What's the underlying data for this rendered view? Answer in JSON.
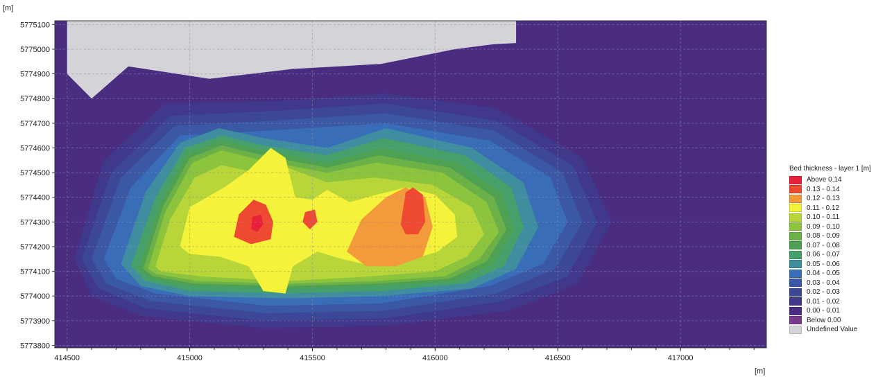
{
  "chart_data": {
    "type": "heatmap",
    "title": "",
    "x_unit_label": "[m]",
    "y_unit_label": "[m]",
    "xlim": [
      414450,
      417350
    ],
    "ylim": [
      5773790,
      5775115
    ],
    "x_ticks": [
      414500,
      415000,
      415500,
      416000,
      416500,
      417000
    ],
    "x_tick_labels": [
      "414500",
      "415000",
      "415500",
      "416000",
      "416500",
      "417000"
    ],
    "y_ticks": [
      5773800,
      5773900,
      5774000,
      5774100,
      5774200,
      5774300,
      5774400,
      5774500,
      5774600,
      5774700,
      5774800,
      5774900,
      5775000,
      5775100
    ],
    "y_tick_labels": [
      "5773800",
      "5773900",
      "5774000",
      "5774100",
      "5774200",
      "5774300",
      "5774400",
      "5774500",
      "5774600",
      "5774700",
      "5774800",
      "5774900",
      "5775000",
      "5775100"
    ],
    "grid": true,
    "legend_position": "right",
    "legend_title": "Bed thickness - layer 1 [m]",
    "legend": [
      {
        "label": "Above 0.14",
        "color": "#e8203a"
      },
      {
        "label": "0.13 - 0.14",
        "color": "#ee4a32"
      },
      {
        "label": "0.12 - 0.13",
        "color": "#f39a3a"
      },
      {
        "label": "0.11 - 0.12",
        "color": "#f4f23a"
      },
      {
        "label": "0.10 - 0.11",
        "color": "#b8d63a"
      },
      {
        "label": "0.09 - 0.10",
        "color": "#8cc43e"
      },
      {
        "label": "0.08 - 0.09",
        "color": "#6cb048"
      },
      {
        "label": "0.07 - 0.08",
        "color": "#4ea052"
      },
      {
        "label": "0.06 - 0.07",
        "color": "#46a06a"
      },
      {
        "label": "0.05 - 0.06",
        "color": "#3e8ea0"
      },
      {
        "label": "0.04 - 0.05",
        "color": "#3a6db8"
      },
      {
        "label": "0.03 - 0.04",
        "color": "#3a58a4"
      },
      {
        "label": "0.02 - 0.03",
        "color": "#3c4896"
      },
      {
        "label": "0.01 - 0.02",
        "color": "#40388a"
      },
      {
        "label": "0.00 - 0.01",
        "color": "#4a2d80"
      },
      {
        "label": "Below 0.00",
        "color": "#7a3a8a"
      },
      {
        "label": "Undefined Value",
        "color": "#d4d4d8"
      }
    ],
    "regions": [
      {
        "level": 14,
        "polygon": [
          [
            414500,
            5773800
          ],
          [
            417350,
            5773800
          ],
          [
            417350,
            5775115
          ],
          [
            414500,
            5775115
          ]
        ]
      },
      {
        "level": 13,
        "polygon": [
          [
            414530,
            5774150
          ],
          [
            414650,
            5774550
          ],
          [
            414900,
            5774780
          ],
          [
            415350,
            5774790
          ],
          [
            415800,
            5774820
          ],
          [
            416250,
            5774760
          ],
          [
            416600,
            5774560
          ],
          [
            416720,
            5774300
          ],
          [
            416580,
            5774050
          ],
          [
            416300,
            5773940
          ],
          [
            415800,
            5773880
          ],
          [
            415300,
            5773870
          ],
          [
            414800,
            5773920
          ],
          [
            414600,
            5774000
          ]
        ]
      },
      {
        "level": 12,
        "polygon": [
          [
            414560,
            5774150
          ],
          [
            414680,
            5774500
          ],
          [
            414920,
            5774730
          ],
          [
            415350,
            5774750
          ],
          [
            415800,
            5774780
          ],
          [
            416250,
            5774710
          ],
          [
            416560,
            5774530
          ],
          [
            416660,
            5774300
          ],
          [
            416540,
            5774080
          ],
          [
            416280,
            5773980
          ],
          [
            415800,
            5773910
          ],
          [
            415300,
            5773900
          ],
          [
            414820,
            5773950
          ],
          [
            414630,
            5774030
          ]
        ]
      },
      {
        "level": 11,
        "polygon": [
          [
            414600,
            5774150
          ],
          [
            414720,
            5774480
          ],
          [
            414940,
            5774690
          ],
          [
            415340,
            5774710
          ],
          [
            415800,
            5774740
          ],
          [
            416240,
            5774670
          ],
          [
            416520,
            5774500
          ],
          [
            416600,
            5774300
          ],
          [
            416490,
            5774110
          ],
          [
            416250,
            5774010
          ],
          [
            415790,
            5773940
          ],
          [
            415310,
            5773930
          ],
          [
            414840,
            5773980
          ],
          [
            414660,
            5774050
          ]
        ]
      },
      {
        "level": 10,
        "polygon": [
          [
            414650,
            5774150
          ],
          [
            414760,
            5774440
          ],
          [
            414960,
            5774650
          ],
          [
            415320,
            5774670
          ],
          [
            415800,
            5774700
          ],
          [
            416220,
            5774630
          ],
          [
            416470,
            5774480
          ],
          [
            416540,
            5774300
          ],
          [
            416440,
            5774130
          ],
          [
            416220,
            5774040
          ],
          [
            415780,
            5773970
          ],
          [
            415320,
            5773960
          ],
          [
            414860,
            5774010
          ],
          [
            414700,
            5774070
          ]
        ]
      },
      {
        "level": 9,
        "polygon": [
          [
            414720,
            5774130
          ],
          [
            414820,
            5774420
          ],
          [
            414960,
            5774620
          ],
          [
            415120,
            5774680
          ],
          [
            415300,
            5774640
          ],
          [
            415560,
            5774600
          ],
          [
            415800,
            5774680
          ],
          [
            416150,
            5774600
          ],
          [
            416360,
            5774460
          ],
          [
            416420,
            5774280
          ],
          [
            416330,
            5774110
          ],
          [
            416150,
            5774030
          ],
          [
            415780,
            5774000
          ],
          [
            415400,
            5773990
          ],
          [
            415000,
            5774000
          ],
          [
            414800,
            5774040
          ]
        ]
      },
      {
        "level": 8,
        "polygon": [
          [
            414760,
            5774120
          ],
          [
            414860,
            5774400
          ],
          [
            414980,
            5774600
          ],
          [
            415130,
            5774650
          ],
          [
            415300,
            5774610
          ],
          [
            415560,
            5774570
          ],
          [
            415790,
            5774640
          ],
          [
            416120,
            5774570
          ],
          [
            416310,
            5774440
          ],
          [
            416360,
            5774280
          ],
          [
            416280,
            5774120
          ],
          [
            416120,
            5774050
          ],
          [
            415780,
            5774020
          ],
          [
            415400,
            5774010
          ],
          [
            415000,
            5774020
          ],
          [
            414820,
            5774060
          ]
        ]
      },
      {
        "level": 7,
        "polygon": [
          [
            414790,
            5774110
          ],
          [
            414880,
            5774380
          ],
          [
            414990,
            5774580
          ],
          [
            415130,
            5774630
          ],
          [
            415300,
            5774590
          ],
          [
            415560,
            5774540
          ],
          [
            415780,
            5774600
          ],
          [
            416090,
            5774540
          ],
          [
            416270,
            5774420
          ],
          [
            416320,
            5774270
          ],
          [
            416240,
            5774130
          ],
          [
            416090,
            5774060
          ],
          [
            415770,
            5774040
          ],
          [
            415400,
            5774030
          ],
          [
            415010,
            5774040
          ],
          [
            414840,
            5774070
          ]
        ]
      },
      {
        "level": 6,
        "polygon": [
          [
            414810,
            5774110
          ],
          [
            414890,
            5774360
          ],
          [
            415000,
            5774560
          ],
          [
            415130,
            5774610
          ],
          [
            415300,
            5774570
          ],
          [
            415560,
            5774520
          ],
          [
            415770,
            5774570
          ],
          [
            416060,
            5774520
          ],
          [
            416240,
            5774400
          ],
          [
            416290,
            5774270
          ],
          [
            416210,
            5774140
          ],
          [
            416060,
            5774070
          ],
          [
            415760,
            5774050
          ],
          [
            415400,
            5774040
          ],
          [
            415020,
            5774050
          ],
          [
            414850,
            5774080
          ]
        ]
      },
      {
        "level": 5,
        "polygon": [
          [
            414830,
            5774110
          ],
          [
            414900,
            5774340
          ],
          [
            415010,
            5774540
          ],
          [
            415130,
            5774590
          ],
          [
            415290,
            5774550
          ],
          [
            415560,
            5774500
          ],
          [
            415760,
            5774540
          ],
          [
            416030,
            5774500
          ],
          [
            416210,
            5774380
          ],
          [
            416260,
            5774260
          ],
          [
            416180,
            5774150
          ],
          [
            416040,
            5774080
          ],
          [
            415750,
            5774060
          ],
          [
            415400,
            5774050
          ],
          [
            415030,
            5774060
          ],
          [
            414860,
            5774090
          ]
        ]
      },
      {
        "level": 4,
        "polygon": [
          [
            414860,
            5774120
          ],
          [
            414920,
            5774310
          ],
          [
            415020,
            5774480
          ],
          [
            415130,
            5774530
          ],
          [
            415270,
            5774500
          ],
          [
            415400,
            5774520
          ],
          [
            415560,
            5774460
          ],
          [
            415750,
            5774480
          ],
          [
            415990,
            5774450
          ],
          [
            416150,
            5774360
          ],
          [
            416200,
            5774250
          ],
          [
            416130,
            5774160
          ],
          [
            416000,
            5774100
          ],
          [
            415740,
            5774080
          ],
          [
            415400,
            5774060
          ],
          [
            415040,
            5774080
          ],
          [
            414880,
            5774100
          ]
        ]
      },
      {
        "level": 3,
        "polygon": [
          [
            414960,
            5774200
          ],
          [
            415000,
            5774360
          ],
          [
            415140,
            5774440
          ],
          [
            415240,
            5774510
          ],
          [
            415330,
            5774600
          ],
          [
            415390,
            5774560
          ],
          [
            415430,
            5774400
          ],
          [
            415500,
            5774390
          ],
          [
            415560,
            5774430
          ],
          [
            415650,
            5774380
          ],
          [
            415760,
            5774410
          ],
          [
            415880,
            5774440
          ],
          [
            416000,
            5774410
          ],
          [
            416080,
            5774330
          ],
          [
            416090,
            5774240
          ],
          [
            416010,
            5774180
          ],
          [
            415880,
            5774140
          ],
          [
            415750,
            5774120
          ],
          [
            415620,
            5774150
          ],
          [
            415520,
            5774180
          ],
          [
            415420,
            5774120
          ],
          [
            415390,
            5774010
          ],
          [
            415300,
            5774020
          ],
          [
            415240,
            5774120
          ],
          [
            415120,
            5774160
          ],
          [
            415000,
            5774170
          ]
        ]
      },
      {
        "level": 2,
        "polygon": [
          [
            415640,
            5774180
          ],
          [
            415700,
            5774310
          ],
          [
            415800,
            5774400
          ],
          [
            415880,
            5774440
          ],
          [
            415960,
            5774400
          ],
          [
            415990,
            5774280
          ],
          [
            415950,
            5774160
          ],
          [
            415840,
            5774120
          ],
          [
            415720,
            5774120
          ]
        ]
      },
      {
        "level": 1,
        "polygon": [
          [
            415180,
            5774240
          ],
          [
            415200,
            5774330
          ],
          [
            415260,
            5774390
          ],
          [
            415310,
            5774370
          ],
          [
            415340,
            5774300
          ],
          [
            415330,
            5774230
          ],
          [
            415250,
            5774210
          ]
        ]
      },
      {
        "level": 1,
        "polygon": [
          [
            415860,
            5774290
          ],
          [
            415880,
            5774420
          ],
          [
            415910,
            5774440
          ],
          [
            415950,
            5774410
          ],
          [
            415960,
            5774300
          ],
          [
            415930,
            5774250
          ],
          [
            415880,
            5774250
          ]
        ]
      },
      {
        "level": 1,
        "polygon": [
          [
            415460,
            5774300
          ],
          [
            415470,
            5774340
          ],
          [
            415510,
            5774350
          ],
          [
            415520,
            5774300
          ],
          [
            415490,
            5774270
          ]
        ]
      },
      {
        "level": 0,
        "polygon": [
          [
            415250,
            5774270
          ],
          [
            415255,
            5774320
          ],
          [
            415290,
            5774330
          ],
          [
            415300,
            5774290
          ],
          [
            415275,
            5774260
          ]
        ]
      },
      {
        "level": 16,
        "polygon": [
          [
            414500,
            5775115
          ],
          [
            416330,
            5775115
          ],
          [
            416330,
            5775025
          ],
          [
            416240,
            5775020
          ],
          [
            416080,
            5775000
          ],
          [
            415780,
            5774940
          ],
          [
            415420,
            5774920
          ],
          [
            415080,
            5774880
          ],
          [
            414750,
            5774930
          ],
          [
            414600,
            5774800
          ],
          [
            414500,
            5774900
          ]
        ]
      }
    ]
  }
}
